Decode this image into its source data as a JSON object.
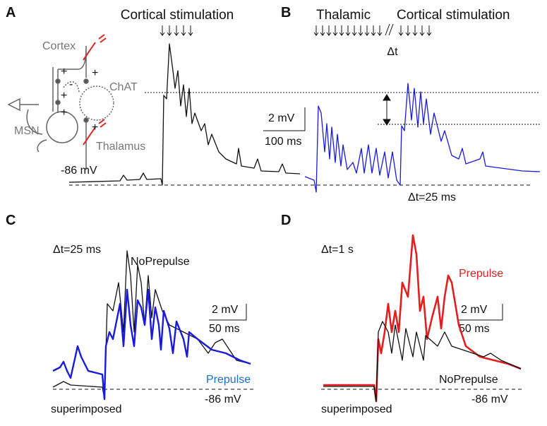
{
  "panels": {
    "A": {
      "letter": "A",
      "title": "Cortical stimulation",
      "circuit": {
        "cortex": "Cortex",
        "chat": "ChAT",
        "msn": "MSN",
        "thalamus": "Thalamus",
        "signs": [
          "+",
          "-",
          "+",
          "+",
          "+",
          "+"
        ]
      },
      "baseline": "-86 mV"
    },
    "B": {
      "letter": "B",
      "thalamic": "Thalamic",
      "title": "Cortical stimulation",
      "delta": "Δt",
      "scale_v": "2 mV",
      "scale_t": "100 ms",
      "interval": "Δt=25 ms"
    },
    "C": {
      "letter": "C",
      "interval": "Δt=25 ms",
      "noprepulse": "NoPrepulse",
      "scale_v": "2 mV",
      "scale_t": "50 ms",
      "prepulse": "Prepulse",
      "note": "superimposed",
      "baseline": "-86 mV"
    },
    "D": {
      "letter": "D",
      "interval": "Δt=1 s",
      "prepulse": "Prepulse",
      "scale_v": "2 mV",
      "scale_t": "50 ms",
      "noprepulse": "NoPrepulse",
      "note": "superimposed",
      "baseline": "-86 mV"
    }
  }
}
